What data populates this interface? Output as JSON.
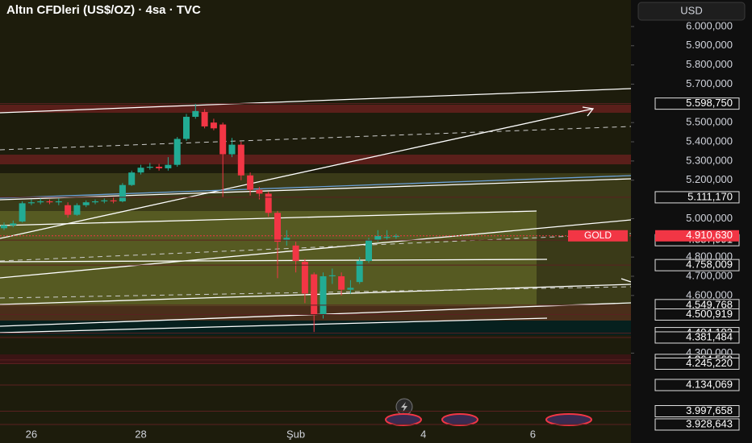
{
  "chart_data": {
    "type": "candlestick",
    "title": "Altın CFDleri (US$/OZ) · 4sa · TVC",
    "currency": "USD",
    "up_color": "#22ab94",
    "down_color": "#f23645",
    "categories": [
      null,
      null,
      null,
      "26",
      null,
      null,
      null,
      null,
      null,
      null,
      null,
      null,
      null,
      null,
      null,
      "28",
      null,
      null,
      null,
      null,
      null,
      null,
      null,
      null,
      null,
      null,
      null,
      null,
      null,
      null,
      null,
      null,
      "Şub",
      null,
      null,
      null,
      null,
      null,
      null,
      null,
      null,
      null,
      null,
      null,
      null,
      null,
      "4",
      null,
      null,
      null,
      null,
      null,
      null,
      null,
      null,
      null,
      null,
      null,
      "6"
    ],
    "open": [
      4950,
      4965,
      4985,
      5080,
      5085,
      5090,
      5085,
      5070,
      5020,
      5070,
      5085,
      5090,
      5095,
      5090,
      5175,
      5240,
      5265,
      5270,
      5262,
      5280,
      5415,
      5530,
      5555,
      5500,
      5490,
      5335,
      5385,
      5225,
      5150,
      5130,
      5030,
      4890,
      4860,
      4775,
      4710,
      4500,
      4700,
      4700,
      4630,
      4670,
      4780,
      4890,
      4900,
      4905,
      null,
      null,
      null,
      null,
      null,
      null,
      null,
      null,
      null,
      null,
      null,
      null,
      null,
      null,
      null
    ],
    "high": [
      4980,
      4990,
      5090,
      5100,
      5105,
      5100,
      5105,
      5085,
      5080,
      5095,
      5100,
      5105,
      5110,
      5185,
      5250,
      5280,
      5290,
      5285,
      5320,
      5425,
      5545,
      5600,
      5570,
      5520,
      5500,
      5420,
      5400,
      5240,
      5165,
      5140,
      5040,
      4940,
      4880,
      4790,
      4720,
      4720,
      4740,
      4720,
      4680,
      4800,
      4900,
      4940,
      4940,
      4920,
      null,
      null,
      null,
      null,
      null,
      null,
      null,
      null,
      null,
      null,
      null,
      null,
      null,
      null,
      null
    ],
    "low": [
      4940,
      4955,
      4980,
      5070,
      5075,
      5075,
      5070,
      5005,
      5015,
      5060,
      5075,
      5080,
      5080,
      5085,
      5170,
      5230,
      5255,
      5250,
      5250,
      5270,
      5405,
      5520,
      5470,
      5460,
      5110,
      5320,
      5200,
      5120,
      5100,
      5010,
      4690,
      4860,
      4720,
      4560,
      4410,
      4480,
      4660,
      4600,
      4610,
      4660,
      4770,
      4880,
      4890,
      4895,
      null,
      null,
      null,
      null,
      null,
      null,
      null,
      null,
      null,
      null,
      null,
      null,
      null,
      null,
      null
    ],
    "close": [
      4965,
      4975,
      5080,
      5085,
      5090,
      5085,
      5090,
      5020,
      5070,
      5085,
      5090,
      5095,
      5090,
      5175,
      5240,
      5265,
      5270,
      5262,
      5280,
      5415,
      5530,
      5560,
      5480,
      5470,
      5335,
      5385,
      5225,
      5150,
      5130,
      5030,
      4880,
      4900,
      4780,
      4610,
      4500,
      4700,
      4705,
      4630,
      4640,
      4780,
      4890,
      4910,
      4905,
      4910,
      null,
      null,
      null,
      null,
      null,
      null,
      null,
      null,
      null,
      null,
      null,
      null,
      null,
      null,
      null
    ],
    "ylim": [
      3916,
      6138
    ],
    "yticks": [
      {
        "value": 6000,
        "label": "6.000,000"
      },
      {
        "value": 5900,
        "label": "5.900,000"
      },
      {
        "value": 5800,
        "label": "5.800,000"
      },
      {
        "value": 5700,
        "label": "5.700,000"
      },
      {
        "value": 5500,
        "label": "5.500,000"
      },
      {
        "value": 5400,
        "label": "5.400,000"
      },
      {
        "value": 5300,
        "label": "5.300,000"
      },
      {
        "value": 5200,
        "label": "5.200,000"
      },
      {
        "value": 5000,
        "label": "5.000,000"
      },
      {
        "value": 4800,
        "label": "4.800,000"
      },
      {
        "value": 4700,
        "label": "4.700,000"
      },
      {
        "value": 4600,
        "label": "4.600,000"
      },
      {
        "value": 4300,
        "label": "4.300,000"
      }
    ],
    "levels": [
      {
        "value": 5598.75,
        "label": "5.598,750"
      },
      {
        "value": 5111.17,
        "label": "5.111,170"
      },
      {
        "value": 4887.991,
        "label": "4.887,991"
      },
      {
        "value": 4758.009,
        "label": "4.758,009"
      },
      {
        "value": 4549.768,
        "label": "4.549,768"
      },
      {
        "value": 4500.919,
        "label": "4.500,919"
      },
      {
        "value": 4404.102,
        "label": "4.404,102"
      },
      {
        "value": 4381.484,
        "label": "4.381,484"
      },
      {
        "value": 4264.56,
        "label": "4.264,560"
      },
      {
        "value": 4245.22,
        "label": "4.245,220"
      },
      {
        "value": 4134.069,
        "label": "4.134,069"
      },
      {
        "value": 3997.658,
        "label": "3.997,658"
      },
      {
        "value": 3928.643,
        "label": "3.928,643"
      }
    ],
    "current_price": {
      "name": "GOLD",
      "value": 4910.63,
      "label": "4.910,630",
      "color": "#f23645"
    }
  }
}
